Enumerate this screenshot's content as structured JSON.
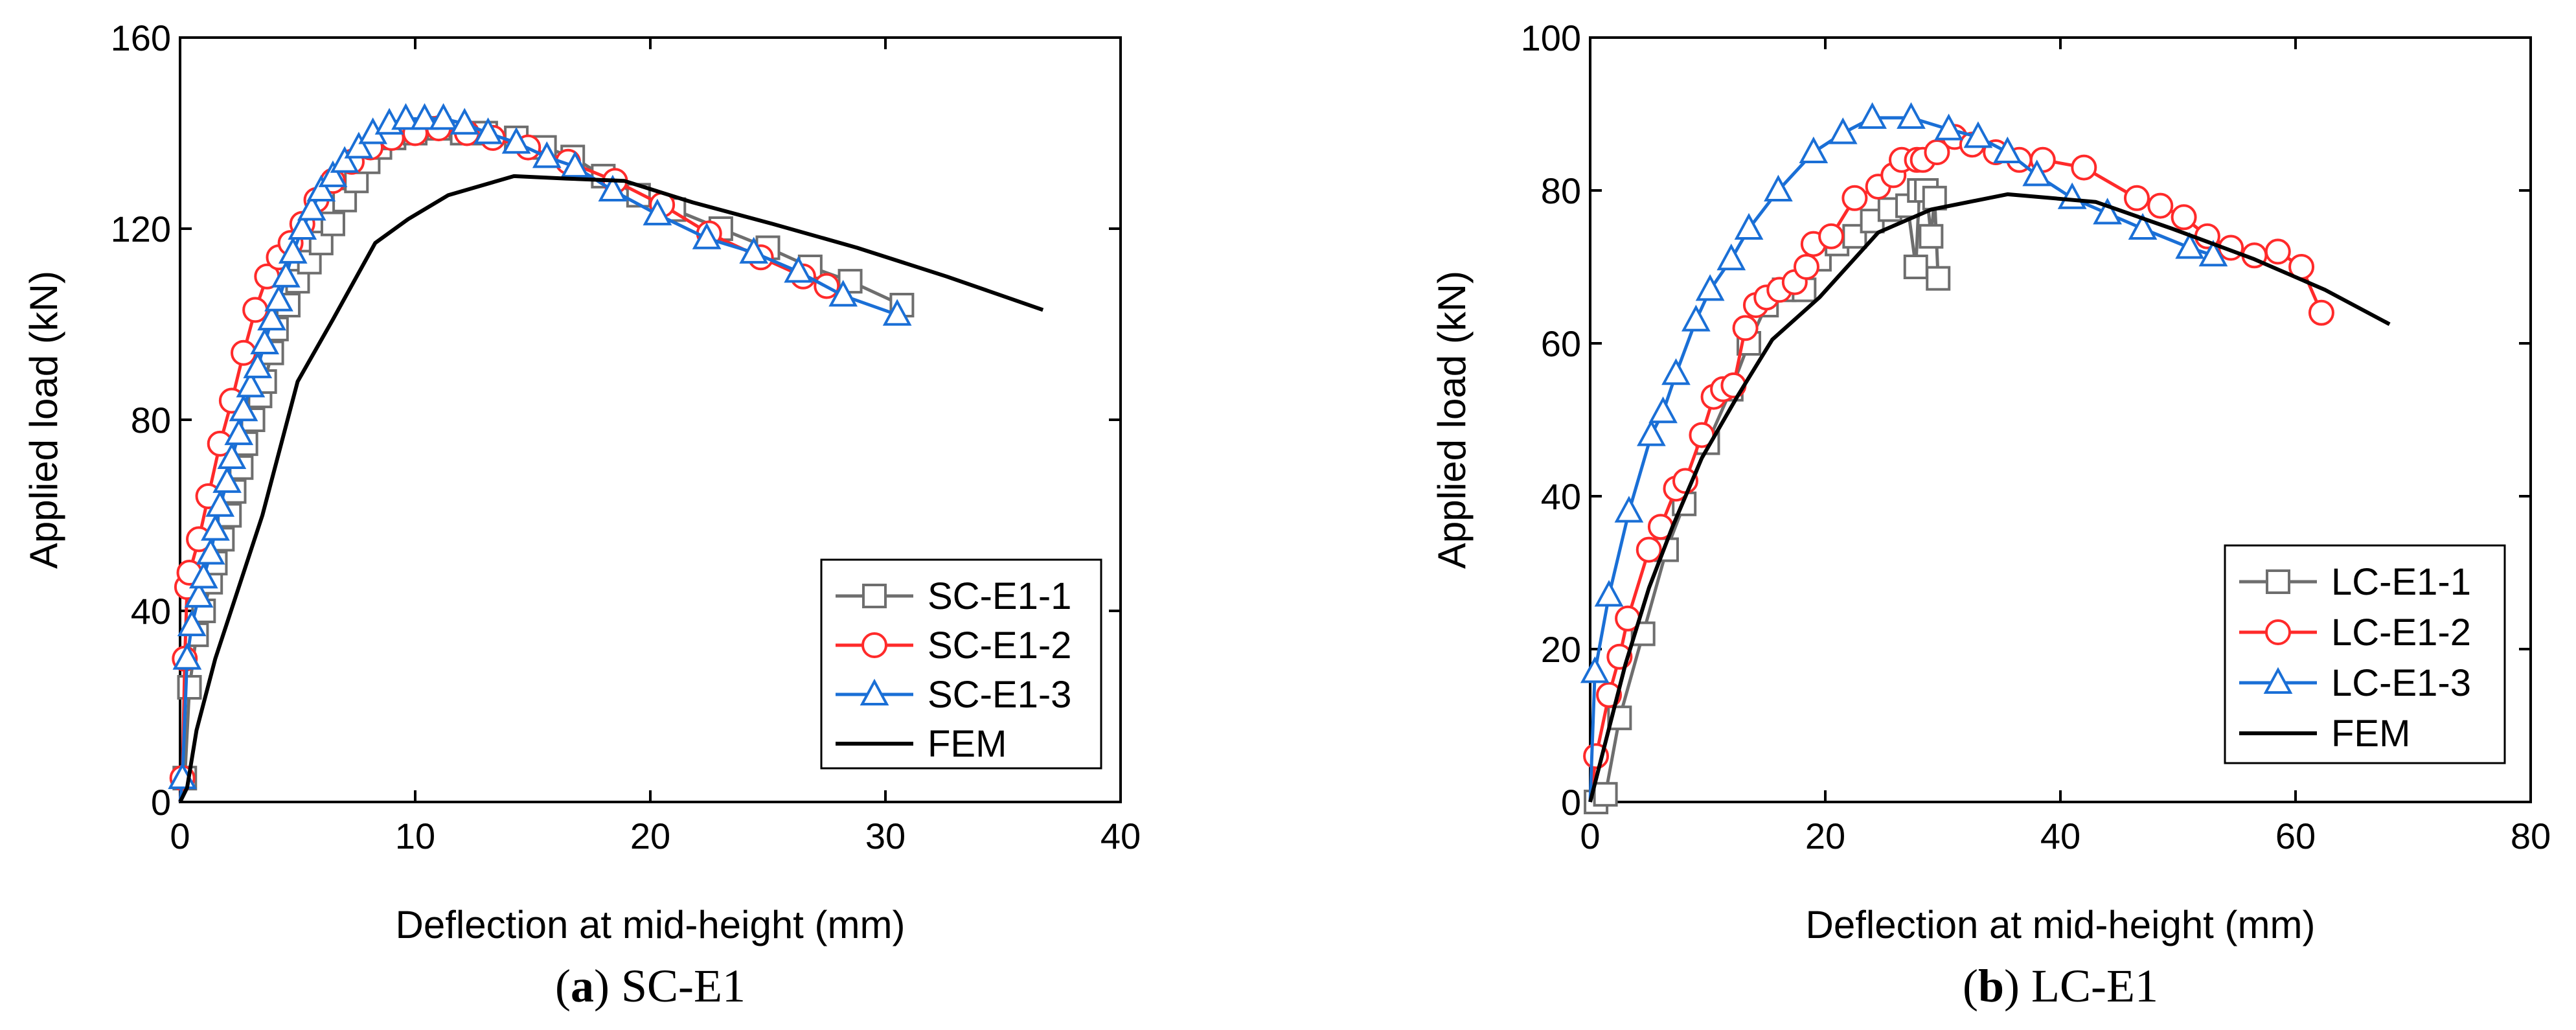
{
  "chart_data": [
    {
      "type": "line",
      "caption_letter": "a",
      "caption_text": "SC-E1",
      "xlabel": "Deflection at mid-height (mm)",
      "ylabel": "Applied load (kN)",
      "xlim": [
        0,
        40
      ],
      "ylim": [
        0,
        160
      ],
      "xticks": [
        "0",
        "10",
        "20",
        "30",
        "40"
      ],
      "yticks": [
        "0",
        "40",
        "80",
        "120",
        "160"
      ],
      "legend_position": "bottom-right",
      "series": [
        {
          "name": "SC-E1-1",
          "color": "#6e6e6e",
          "marker": "square",
          "marker_every": 1,
          "points": [
            [
              0.0,
              0
            ],
            [
              0.2,
              5
            ],
            [
              0.4,
              24
            ],
            [
              0.7,
              35
            ],
            [
              1.0,
              40
            ],
            [
              1.3,
              46
            ],
            [
              1.5,
              50
            ],
            [
              1.8,
              55
            ],
            [
              2.1,
              60
            ],
            [
              2.3,
              65
            ],
            [
              2.6,
              70
            ],
            [
              2.8,
              75
            ],
            [
              3.1,
              80
            ],
            [
              3.4,
              85
            ],
            [
              3.6,
              88
            ],
            [
              3.9,
              94
            ],
            [
              4.1,
              99
            ],
            [
              4.6,
              104
            ],
            [
              5.0,
              109
            ],
            [
              5.5,
              113
            ],
            [
              6.0,
              117
            ],
            [
              6.5,
              121
            ],
            [
              7.0,
              126
            ],
            [
              7.5,
              130
            ],
            [
              8.0,
              134
            ],
            [
              8.5,
              137
            ],
            [
              9.1,
              139
            ],
            [
              10.0,
              140
            ],
            [
              11.0,
              141
            ],
            [
              12.0,
              140
            ],
            [
              13.0,
              140
            ],
            [
              14.3,
              139
            ],
            [
              15.5,
              137
            ],
            [
              16.7,
              135
            ],
            [
              18.0,
              131
            ],
            [
              19.5,
              127
            ],
            [
              21.0,
              124
            ],
            [
              23.0,
              120
            ],
            [
              25.0,
              116
            ],
            [
              26.8,
              112
            ],
            [
              28.5,
              109
            ],
            [
              30.7,
              104
            ]
          ]
        },
        {
          "name": "SC-E1-2",
          "color": "#ff2a2a",
          "marker": "circle",
          "marker_every": 1,
          "points": [
            [
              0.0,
              0
            ],
            [
              0.1,
              5
            ],
            [
              0.2,
              30
            ],
            [
              0.3,
              45
            ],
            [
              0.4,
              48
            ],
            [
              0.8,
              55
            ],
            [
              1.2,
              64
            ],
            [
              1.7,
              75
            ],
            [
              2.2,
              84
            ],
            [
              2.7,
              94
            ],
            [
              3.2,
              103
            ],
            [
              3.7,
              110
            ],
            [
              4.2,
              114
            ],
            [
              4.7,
              117
            ],
            [
              5.2,
              121
            ],
            [
              5.8,
              126
            ],
            [
              6.5,
              130
            ],
            [
              7.3,
              134
            ],
            [
              8.1,
              137
            ],
            [
              9.0,
              139
            ],
            [
              10.0,
              140
            ],
            [
              11.0,
              141
            ],
            [
              12.2,
              140
            ],
            [
              13.3,
              139
            ],
            [
              14.8,
              137
            ],
            [
              16.5,
              134
            ],
            [
              18.5,
              130
            ],
            [
              20.5,
              125
            ],
            [
              22.5,
              119
            ],
            [
              24.7,
              114
            ],
            [
              26.5,
              110
            ],
            [
              27.5,
              108
            ]
          ]
        },
        {
          "name": "SC-E1-3",
          "color": "#1a6fd6",
          "marker": "triangle",
          "marker_every": 1,
          "points": [
            [
              0.0,
              0
            ],
            [
              0.1,
              5
            ],
            [
              0.3,
              30
            ],
            [
              0.5,
              37
            ],
            [
              0.8,
              43
            ],
            [
              1.0,
              47
            ],
            [
              1.3,
              52
            ],
            [
              1.5,
              57
            ],
            [
              1.7,
              62
            ],
            [
              2.0,
              67
            ],
            [
              2.2,
              72
            ],
            [
              2.5,
              77
            ],
            [
              2.7,
              82
            ],
            [
              3.0,
              87
            ],
            [
              3.3,
              91
            ],
            [
              3.6,
              96
            ],
            [
              3.9,
              101
            ],
            [
              4.2,
              105
            ],
            [
              4.5,
              110
            ],
            [
              4.8,
              115
            ],
            [
              5.2,
              120
            ],
            [
              5.6,
              124
            ],
            [
              6.0,
              128
            ],
            [
              6.5,
              131
            ],
            [
              7.0,
              134
            ],
            [
              7.6,
              137
            ],
            [
              8.2,
              140
            ],
            [
              8.9,
              142
            ],
            [
              9.6,
              143
            ],
            [
              10.4,
              143
            ],
            [
              11.2,
              143
            ],
            [
              12.1,
              142
            ],
            [
              13.1,
              140
            ],
            [
              14.3,
              138
            ],
            [
              15.6,
              135
            ],
            [
              16.8,
              133
            ],
            [
              18.4,
              128
            ],
            [
              20.3,
              123
            ],
            [
              22.4,
              118
            ],
            [
              24.4,
              115
            ],
            [
              26.3,
              111
            ],
            [
              28.2,
              106
            ],
            [
              30.5,
              102
            ]
          ]
        },
        {
          "name": "FEM",
          "color": "#000000",
          "marker": "none",
          "marker_every": 0,
          "points": [
            [
              0.0,
              0
            ],
            [
              0.3,
              3
            ],
            [
              0.7,
              15
            ],
            [
              1.5,
              30
            ],
            [
              2.5,
              45
            ],
            [
              3.5,
              60
            ],
            [
              5.0,
              88
            ],
            [
              6.5,
              101
            ],
            [
              8.3,
              117
            ],
            [
              9.7,
              122
            ],
            [
              11.4,
              127
            ],
            [
              14.2,
              131
            ],
            [
              16.4,
              130.5
            ],
            [
              18.9,
              130
            ],
            [
              21.8,
              125.5
            ],
            [
              25.2,
              121
            ],
            [
              28.8,
              116
            ],
            [
              32.6,
              110
            ],
            [
              36.7,
              103
            ]
          ]
        }
      ]
    },
    {
      "type": "line",
      "caption_letter": "b",
      "caption_text": "LC-E1",
      "xlabel": "Deflection at mid-height (mm)",
      "ylabel": "Applied load (kN)",
      "xlim": [
        0,
        80
      ],
      "ylim": [
        0,
        100
      ],
      "xticks": [
        "0",
        "20",
        "40",
        "60",
        "80"
      ],
      "yticks": [
        "0",
        "20",
        "40",
        "60",
        "80",
        "100"
      ],
      "legend_position": "bottom-right",
      "series": [
        {
          "name": "LC-E1-1",
          "color": "#6e6e6e",
          "marker": "square",
          "marker_every": 1,
          "points": [
            [
              0.0,
              0
            ],
            [
              0.5,
              0
            ],
            [
              1.3,
              1
            ],
            [
              2.5,
              11
            ],
            [
              4.5,
              22
            ],
            [
              6.5,
              33
            ],
            [
              8.0,
              39
            ],
            [
              10.0,
              47
            ],
            [
              12.0,
              54
            ],
            [
              13.5,
              60
            ],
            [
              15.0,
              65
            ],
            [
              16.5,
              67
            ],
            [
              18.2,
              67
            ],
            [
              19.5,
              71
            ],
            [
              21.0,
              73
            ],
            [
              22.5,
              74
            ],
            [
              24.0,
              76
            ],
            [
              25.5,
              77.5
            ],
            [
              27.0,
              78
            ],
            [
              27.7,
              70
            ],
            [
              28.0,
              80
            ],
            [
              28.6,
              80
            ],
            [
              29.0,
              74
            ],
            [
              29.3,
              79
            ],
            [
              29.6,
              68.5
            ]
          ]
        },
        {
          "name": "LC-E1-2",
          "color": "#ff2a2a",
          "marker": "circle",
          "marker_every": 1,
          "points": [
            [
              0.0,
              0
            ],
            [
              0.5,
              6
            ],
            [
              1.6,
              14
            ],
            [
              2.5,
              19
            ],
            [
              3.2,
              24
            ],
            [
              5.0,
              33
            ],
            [
              6.0,
              36
            ],
            [
              7.3,
              41
            ],
            [
              8.1,
              42
            ],
            [
              9.5,
              48
            ],
            [
              10.5,
              53
            ],
            [
              11.3,
              54
            ],
            [
              12.2,
              54.5
            ],
            [
              13.2,
              62
            ],
            [
              14.1,
              65
            ],
            [
              15.0,
              66
            ],
            [
              16.1,
              67
            ],
            [
              17.4,
              68
            ],
            [
              18.4,
              70
            ],
            [
              19.0,
              73
            ],
            [
              20.5,
              74
            ],
            [
              22.5,
              79
            ],
            [
              24.5,
              80.5
            ],
            [
              25.8,
              82
            ],
            [
              26.5,
              84
            ],
            [
              27.8,
              84
            ],
            [
              28.3,
              84
            ],
            [
              29.5,
              85
            ],
            [
              31.0,
              87
            ],
            [
              32.5,
              86
            ],
            [
              34.5,
              85
            ],
            [
              36.5,
              84
            ],
            [
              38.5,
              84
            ],
            [
              42.0,
              83
            ],
            [
              46.5,
              79
            ],
            [
              48.5,
              78
            ],
            [
              50.5,
              76.5
            ],
            [
              52.5,
              74
            ],
            [
              54.5,
              72.5
            ],
            [
              56.5,
              71.5
            ],
            [
              58.5,
              72
            ],
            [
              60.5,
              70
            ],
            [
              62.2,
              64
            ]
          ]
        },
        {
          "name": "LC-E1-3",
          "color": "#1a6fd6",
          "marker": "triangle",
          "marker_every": 1,
          "points": [
            [
              0.0,
              0
            ],
            [
              0.4,
              17
            ],
            [
              1.6,
              27
            ],
            [
              3.3,
              38
            ],
            [
              5.2,
              48
            ],
            [
              6.2,
              51
            ],
            [
              7.3,
              56
            ],
            [
              9.0,
              63
            ],
            [
              10.2,
              67
            ],
            [
              12.0,
              71
            ],
            [
              13.5,
              75
            ],
            [
              16.0,
              80
            ],
            [
              19.0,
              85
            ],
            [
              21.5,
              87.5
            ],
            [
              24.0,
              89.5
            ],
            [
              27.3,
              89.5
            ],
            [
              30.5,
              88
            ],
            [
              33.0,
              87
            ],
            [
              35.5,
              85
            ],
            [
              38.0,
              82
            ],
            [
              41.0,
              79
            ],
            [
              44.0,
              77
            ],
            [
              47.0,
              75
            ],
            [
              51.0,
              72.5
            ],
            [
              53.0,
              71.5
            ]
          ]
        },
        {
          "name": "FEM",
          "color": "#000000",
          "marker": "none",
          "marker_every": 0,
          "points": [
            [
              0.0,
              0
            ],
            [
              0.5,
              3
            ],
            [
              1.5,
              9
            ],
            [
              3.0,
              18
            ],
            [
              5.0,
              28
            ],
            [
              7.0,
              36
            ],
            [
              9.5,
              45
            ],
            [
              12.5,
              53
            ],
            [
              15.5,
              60.5
            ],
            [
              19.5,
              66
            ],
            [
              24.5,
              74.5
            ],
            [
              29.0,
              77.5
            ],
            [
              35.5,
              79.5
            ],
            [
              43.0,
              78.5
            ],
            [
              49.5,
              75
            ],
            [
              56.5,
              71
            ],
            [
              62.5,
              67
            ],
            [
              68.0,
              62.5
            ]
          ]
        }
      ]
    }
  ]
}
